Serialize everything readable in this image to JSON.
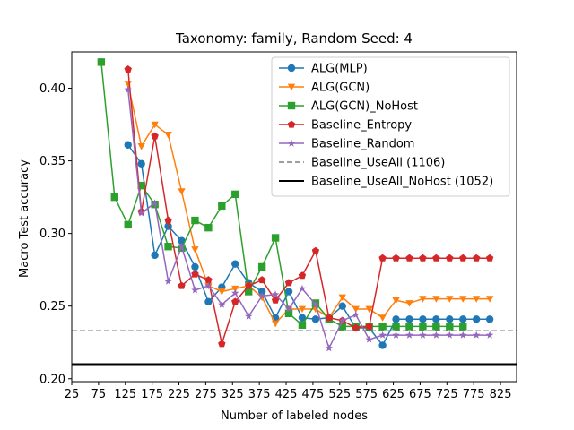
{
  "chart_data": {
    "type": "line",
    "title": "Taxonomy: family, Random Seed: 4",
    "xlabel": "Number of labeled nodes",
    "ylabel": "Macro Test accuracy",
    "xlim": [
      25,
      855
    ],
    "ylim": [
      0.198,
      0.425
    ],
    "xticks": [
      25,
      75,
      125,
      175,
      225,
      275,
      325,
      375,
      425,
      475,
      525,
      575,
      625,
      675,
      725,
      775,
      825
    ],
    "yticks": [
      0.2,
      0.25,
      0.3,
      0.35,
      0.4
    ],
    "ytick_labels": [
      "0.20",
      "0.25",
      "0.30",
      "0.35",
      "0.40"
    ],
    "grid": false,
    "legend_position": "top-right",
    "series": [
      {
        "name": "ALG(MLP)",
        "color": "#1f77b4",
        "marker": "circle",
        "linestyle": "solid",
        "x": [
          130,
          155,
          180,
          205,
          230,
          255,
          280,
          305,
          330,
          355,
          380,
          405,
          430,
          455,
          480,
          505,
          530,
          555,
          580,
          605,
          630,
          655,
          680,
          705,
          730,
          755,
          780,
          805
        ],
        "y": [
          0.361,
          0.348,
          0.285,
          0.305,
          0.295,
          0.277,
          0.253,
          0.263,
          0.279,
          0.266,
          0.26,
          0.242,
          0.26,
          0.242,
          0.241,
          0.242,
          0.25,
          0.235,
          0.235,
          0.223,
          0.241,
          0.241,
          0.241,
          0.241,
          0.241,
          0.241,
          0.241,
          0.241
        ]
      },
      {
        "name": "ALG(GCN)",
        "color": "#ff7f0e",
        "marker": "triangle-down",
        "linestyle": "solid",
        "x": [
          130,
          155,
          180,
          205,
          230,
          255,
          280,
          305,
          330,
          355,
          380,
          405,
          430,
          455,
          480,
          505,
          530,
          555,
          580,
          605,
          630,
          655,
          680,
          705,
          730,
          755,
          780,
          805
        ],
        "y": [
          0.403,
          0.36,
          0.375,
          0.368,
          0.329,
          0.289,
          0.264,
          0.26,
          0.262,
          0.264,
          0.256,
          0.238,
          0.248,
          0.248,
          0.248,
          0.242,
          0.256,
          0.248,
          0.248,
          0.242,
          0.254,
          0.252,
          0.255,
          0.255,
          0.255,
          0.255,
          0.255,
          0.255
        ]
      },
      {
        "name": "ALG(GCN)_NoHost",
        "color": "#2ca02c",
        "marker": "square",
        "linestyle": "solid",
        "x": [
          80,
          105,
          130,
          155,
          180,
          205,
          230,
          255,
          280,
          305,
          330,
          355,
          380,
          405,
          430,
          455,
          480,
          505,
          530,
          555,
          580,
          605,
          630,
          655,
          680,
          705,
          730,
          755
        ],
        "y": [
          0.418,
          0.325,
          0.306,
          0.333,
          0.32,
          0.291,
          0.29,
          0.309,
          0.304,
          0.319,
          0.327,
          0.26,
          0.277,
          0.297,
          0.245,
          0.237,
          0.252,
          0.241,
          0.236,
          0.236,
          0.236,
          0.236,
          0.236,
          0.236,
          0.236,
          0.236,
          0.236,
          0.236
        ]
      },
      {
        "name": "Baseline_Entropy",
        "color": "#d62728",
        "marker": "pentagon",
        "linestyle": "solid",
        "x": [
          130,
          155,
          180,
          205,
          230,
          255,
          280,
          305,
          330,
          355,
          380,
          405,
          430,
          455,
          480,
          505,
          530,
          555,
          580,
          605,
          630,
          655,
          680,
          705,
          730,
          755,
          780,
          805
        ],
        "y": [
          0.413,
          0.315,
          0.367,
          0.309,
          0.264,
          0.272,
          0.268,
          0.224,
          0.253,
          0.264,
          0.268,
          0.254,
          0.266,
          0.271,
          0.288,
          0.242,
          0.24,
          0.235,
          0.236,
          0.283,
          0.283,
          0.283,
          0.283,
          0.283,
          0.283,
          0.283,
          0.283,
          0.283
        ]
      },
      {
        "name": "Baseline_Random",
        "color": "#9467bd",
        "marker": "star",
        "linestyle": "solid",
        "x": [
          130,
          155,
          180,
          205,
          230,
          255,
          280,
          305,
          330,
          355,
          380,
          405,
          430,
          455,
          480,
          505,
          530,
          555,
          580,
          605,
          630,
          655,
          680,
          705,
          730,
          755,
          780,
          805
        ],
        "y": [
          0.399,
          0.314,
          0.321,
          0.267,
          0.291,
          0.261,
          0.264,
          0.251,
          0.259,
          0.243,
          0.257,
          0.258,
          0.248,
          0.262,
          0.251,
          0.221,
          0.24,
          0.244,
          0.227,
          0.23,
          0.23,
          0.23,
          0.23,
          0.23,
          0.23,
          0.23,
          0.23,
          0.23
        ]
      }
    ],
    "reference_lines": [
      {
        "name": "Baseline_UseAll (1106)",
        "color": "#7f7f7f",
        "linestyle": "dashed",
        "y": 0.233
      },
      {
        "name": "Baseline_UseAll_NoHost (1052)",
        "color": "#000000",
        "linestyle": "solid",
        "y": 0.21
      }
    ]
  }
}
